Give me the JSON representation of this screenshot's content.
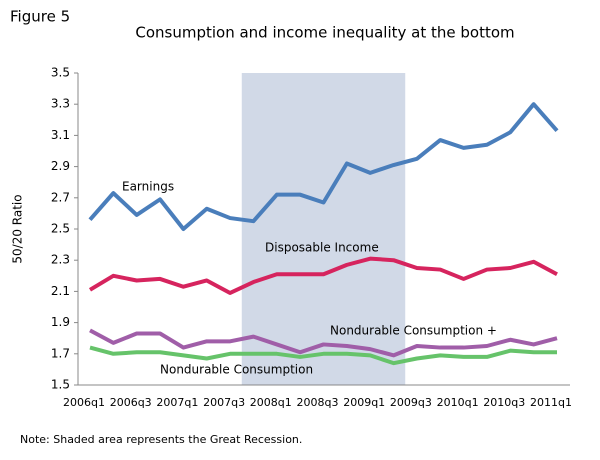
{
  "chart_data": {
    "type": "line",
    "figure_label": "Figure 5",
    "title": "Consumption and income inequality at the bottom",
    "y_label": "50/20 Ratio",
    "note": "Note: Shaded area represents the Great Recession.",
    "categories": [
      "2006q1",
      null,
      "2006q3",
      null,
      "2007q1",
      null,
      "2007q3",
      null,
      "2008q1",
      null,
      "2008q3",
      null,
      "2009q1",
      null,
      "2009q3",
      null,
      "2010q1",
      null,
      "2010q3",
      null,
      "2011q1"
    ],
    "shade_range": [
      6.5,
      13.5
    ],
    "shade_color": "#d1d9e7",
    "series": [
      {
        "name": "Earnings",
        "color": "#4a7ebb",
        "values": [
          2.56,
          2.73,
          2.59,
          2.69,
          2.5,
          2.63,
          2.57,
          2.55,
          2.72,
          2.72,
          2.67,
          2.92,
          2.86,
          2.91,
          2.95,
          3.07,
          3.02,
          3.04,
          3.12,
          3.3,
          3.13
        ]
      },
      {
        "name": "Disposable Income",
        "color": "#d6245e",
        "values": [
          2.11,
          2.2,
          2.17,
          2.18,
          2.13,
          2.17,
          2.09,
          2.16,
          2.21,
          2.21,
          2.21,
          2.27,
          2.31,
          2.3,
          2.25,
          2.24,
          2.18,
          2.24,
          2.25,
          2.29,
          2.21
        ]
      },
      {
        "name": "Nondurable Consumption +",
        "color": "#a05ea8",
        "values": [
          1.85,
          1.77,
          1.83,
          1.83,
          1.74,
          1.78,
          1.78,
          1.81,
          1.76,
          1.71,
          1.76,
          1.75,
          1.73,
          1.69,
          1.75,
          1.74,
          1.74,
          1.75,
          1.79,
          1.76,
          1.8
        ]
      },
      {
        "name": "Nondurable Consumption",
        "color": "#66c36a",
        "values": [
          1.74,
          1.7,
          1.71,
          1.71,
          1.69,
          1.67,
          1.7,
          1.7,
          1.7,
          1.68,
          1.7,
          1.7,
          1.69,
          1.64,
          1.67,
          1.69,
          1.68,
          1.68,
          1.72,
          1.71,
          1.71
        ]
      }
    ],
    "ylim": [
      1.5,
      3.5
    ],
    "yticks": [
      1.5,
      1.7,
      1.9,
      2.1,
      2.3,
      2.5,
      2.7,
      2.9,
      3.1,
      3.3,
      3.5
    ]
  }
}
